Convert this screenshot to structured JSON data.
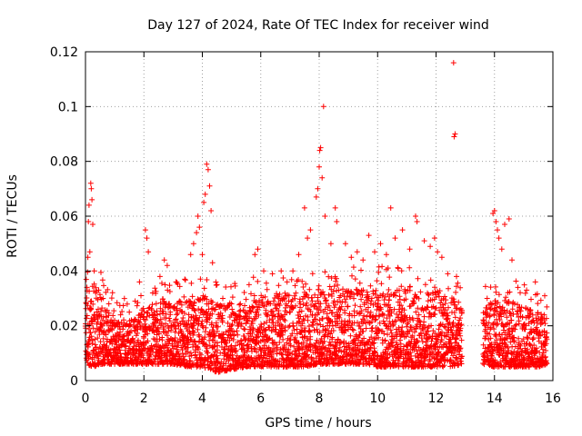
{
  "chart_data": {
    "type": "scatter",
    "title": "Day 127 of 2024, Rate Of TEC Index for receiver wind",
    "xlabel": "GPS time / hours",
    "ylabel": "ROTI / TECUs",
    "xlim": [
      0,
      16
    ],
    "ylim": [
      0,
      0.12
    ],
    "xticks": [
      0,
      2,
      4,
      6,
      8,
      10,
      12,
      14,
      16
    ],
    "xtick_labels": [
      "0",
      "2",
      "4",
      "6",
      "8",
      "10",
      "12",
      "14",
      "16"
    ],
    "yticks": [
      0,
      0.02,
      0.04,
      0.06,
      0.08,
      0.1,
      0.12
    ],
    "ytick_labels": [
      "0",
      "0.02",
      "0.04",
      "0.06",
      "0.08",
      "0.1",
      "0.12"
    ],
    "grid": true,
    "marker": "+",
    "color": "#ff0000",
    "data_gap_hours": [
      12.9,
      13.6
    ],
    "series": [
      {
        "name": "ROTI",
        "points": [
          [
            0.05,
            0.034
          ],
          [
            0.08,
            0.045
          ],
          [
            0.1,
            0.058
          ],
          [
            0.12,
            0.064
          ],
          [
            0.15,
            0.047
          ],
          [
            0.18,
            0.072
          ],
          [
            0.2,
            0.07
          ],
          [
            0.22,
            0.066
          ],
          [
            0.25,
            0.057
          ],
          [
            0.3,
            0.04
          ],
          [
            0.45,
            0.033
          ],
          [
            0.6,
            0.03
          ],
          [
            0.8,
            0.028
          ],
          [
            1.2,
            0.024
          ],
          [
            1.5,
            0.025
          ],
          [
            1.7,
            0.029
          ],
          [
            1.85,
            0.036
          ],
          [
            1.9,
            0.031
          ],
          [
            2.05,
            0.055
          ],
          [
            2.1,
            0.052
          ],
          [
            2.15,
            0.047
          ],
          [
            2.3,
            0.032
          ],
          [
            2.55,
            0.038
          ],
          [
            2.7,
            0.044
          ],
          [
            2.8,
            0.042
          ],
          [
            3.1,
            0.036
          ],
          [
            3.4,
            0.037
          ],
          [
            3.6,
            0.046
          ],
          [
            3.7,
            0.05
          ],
          [
            3.8,
            0.054
          ],
          [
            3.85,
            0.06
          ],
          [
            3.9,
            0.056
          ],
          [
            4.0,
            0.046
          ],
          [
            4.05,
            0.065
          ],
          [
            4.1,
            0.068
          ],
          [
            4.15,
            0.079
          ],
          [
            4.2,
            0.077
          ],
          [
            4.25,
            0.071
          ],
          [
            4.3,
            0.062
          ],
          [
            4.35,
            0.043
          ],
          [
            4.5,
            0.035
          ],
          [
            4.7,
            0.03
          ],
          [
            5.0,
            0.028
          ],
          [
            5.3,
            0.028
          ],
          [
            5.6,
            0.035
          ],
          [
            5.8,
            0.046
          ],
          [
            5.9,
            0.048
          ],
          [
            6.1,
            0.04
          ],
          [
            6.4,
            0.039
          ],
          [
            6.7,
            0.04
          ],
          [
            6.9,
            0.036
          ],
          [
            7.1,
            0.04
          ],
          [
            7.3,
            0.046
          ],
          [
            7.5,
            0.063
          ],
          [
            7.6,
            0.052
          ],
          [
            7.7,
            0.055
          ],
          [
            7.9,
            0.067
          ],
          [
            7.95,
            0.07
          ],
          [
            8.0,
            0.078
          ],
          [
            8.02,
            0.084
          ],
          [
            8.05,
            0.085
          ],
          [
            8.1,
            0.074
          ],
          [
            8.15,
            0.1
          ],
          [
            8.2,
            0.06
          ],
          [
            8.4,
            0.05
          ],
          [
            8.55,
            0.063
          ],
          [
            8.6,
            0.058
          ],
          [
            8.9,
            0.05
          ],
          [
            9.1,
            0.045
          ],
          [
            9.3,
            0.047
          ],
          [
            9.5,
            0.044
          ],
          [
            9.7,
            0.053
          ],
          [
            9.9,
            0.047
          ],
          [
            10.1,
            0.05
          ],
          [
            10.3,
            0.046
          ],
          [
            10.45,
            0.063
          ],
          [
            10.6,
            0.052
          ],
          [
            10.85,
            0.055
          ],
          [
            11.1,
            0.048
          ],
          [
            11.3,
            0.06
          ],
          [
            11.35,
            0.058
          ],
          [
            11.6,
            0.051
          ],
          [
            11.8,
            0.049
          ],
          [
            11.95,
            0.052
          ],
          [
            12.05,
            0.047
          ],
          [
            12.2,
            0.045
          ],
          [
            12.4,
            0.039
          ],
          [
            12.6,
            0.116
          ],
          [
            12.62,
            0.089
          ],
          [
            12.65,
            0.09
          ],
          [
            12.7,
            0.038
          ],
          [
            13.75,
            0.03
          ],
          [
            13.95,
            0.061
          ],
          [
            14.0,
            0.062
          ],
          [
            14.05,
            0.058
          ],
          [
            14.1,
            0.055
          ],
          [
            14.15,
            0.052
          ],
          [
            14.25,
            0.048
          ],
          [
            14.35,
            0.057
          ],
          [
            14.5,
            0.059
          ],
          [
            14.6,
            0.044
          ],
          [
            14.8,
            0.034
          ],
          [
            15.1,
            0.033
          ],
          [
            15.4,
            0.036
          ],
          [
            15.7,
            0.024
          ]
        ],
        "envelope_x": [
          0,
          0.3,
          0.6,
          1.0,
          1.5,
          2.0,
          2.5,
          3.0,
          3.5,
          4.0,
          4.5,
          5.0,
          5.5,
          6.0,
          6.5,
          7.0,
          7.5,
          8.0,
          8.5,
          9.0,
          9.5,
          10.0,
          10.5,
          11.0,
          11.5,
          12.0,
          12.5,
          12.9,
          13.6,
          14.0,
          14.5,
          15.0,
          15.5,
          15.8
        ],
        "envelope_high": [
          0.032,
          0.035,
          0.028,
          0.022,
          0.022,
          0.025,
          0.028,
          0.028,
          0.028,
          0.03,
          0.028,
          0.026,
          0.026,
          0.03,
          0.03,
          0.03,
          0.032,
          0.032,
          0.032,
          0.032,
          0.032,
          0.032,
          0.032,
          0.032,
          0.032,
          0.032,
          0.03,
          0.025,
          0.025,
          0.028,
          0.028,
          0.026,
          0.024,
          0.022
        ],
        "envelope_low": [
          0.006,
          0.005,
          0.006,
          0.006,
          0.006,
          0.006,
          0.006,
          0.006,
          0.005,
          0.005,
          0.003,
          0.004,
          0.005,
          0.005,
          0.005,
          0.005,
          0.005,
          0.006,
          0.006,
          0.006,
          0.006,
          0.005,
          0.005,
          0.005,
          0.005,
          0.005,
          0.005,
          0.006,
          0.006,
          0.005,
          0.005,
          0.005,
          0.005,
          0.006
        ]
      }
    ]
  }
}
